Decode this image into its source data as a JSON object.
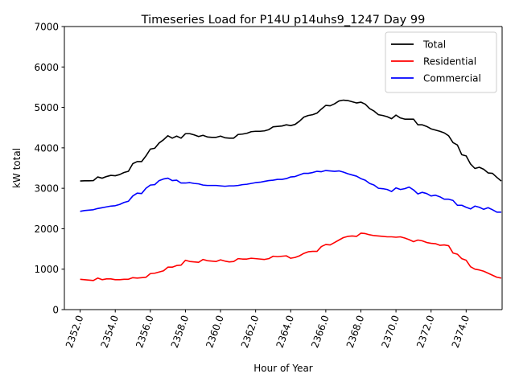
{
  "chart_data": {
    "type": "line",
    "title": "Timeseries Load for P14U p14uhs9_1247  Day 99",
    "xlabel": "Hour of Year",
    "ylabel": "kW total",
    "xlim": [
      2351.1,
      2376.05
    ],
    "ylim": [
      0,
      7000
    ],
    "xticks": [
      2352,
      2354,
      2356,
      2358,
      2360,
      2362,
      2364,
      2366,
      2368,
      2370,
      2372,
      2374
    ],
    "xtick_labels": [
      "2352.0",
      "2354.0",
      "2356.0",
      "2358.0",
      "2360.0",
      "2362.0",
      "2364.0",
      "2366.0",
      "2368.0",
      "2370.0",
      "2372.0",
      "2374.0"
    ],
    "yticks": [
      0,
      1000,
      2000,
      3000,
      4000,
      5000,
      6000,
      7000
    ],
    "ytick_labels": [
      "0",
      "1000",
      "2000",
      "3000",
      "4000",
      "5000",
      "6000",
      "7000"
    ],
    "legend_position": "top-right",
    "x_start": 2352.0,
    "x_step": 0.25,
    "series": [
      {
        "name": "Total",
        "color": "#000000",
        "values": [
          3180,
          3185,
          3185,
          3190,
          3280,
          3250,
          3290,
          3320,
          3310,
          3340,
          3390,
          3420,
          3610,
          3660,
          3660,
          3800,
          3970,
          3990,
          4120,
          4200,
          4300,
          4240,
          4290,
          4240,
          4350,
          4350,
          4320,
          4280,
          4310,
          4270,
          4260,
          4260,
          4290,
          4250,
          4240,
          4240,
          4330,
          4340,
          4360,
          4400,
          4410,
          4410,
          4420,
          4450,
          4520,
          4530,
          4540,
          4570,
          4550,
          4580,
          4660,
          4760,
          4800,
          4820,
          4860,
          4960,
          5050,
          5040,
          5090,
          5160,
          5180,
          5170,
          5140,
          5110,
          5130,
          5080,
          4970,
          4910,
          4820,
          4800,
          4770,
          4720,
          4810,
          4740,
          4710,
          4710,
          4710,
          4570,
          4570,
          4530,
          4470,
          4440,
          4410,
          4370,
          4300,
          4130,
          4070,
          3830,
          3800,
          3600,
          3490,
          3520,
          3470,
          3380,
          3370,
          3270,
          3180
        ]
      },
      {
        "name": "Residential",
        "color": "#ff0000",
        "values": [
          750,
          740,
          730,
          720,
          780,
          740,
          760,
          760,
          740,
          740,
          750,
          750,
          790,
          780,
          790,
          800,
          890,
          900,
          930,
          960,
          1050,
          1050,
          1090,
          1100,
          1220,
          1190,
          1180,
          1170,
          1240,
          1210,
          1200,
          1190,
          1230,
          1200,
          1180,
          1190,
          1260,
          1250,
          1250,
          1270,
          1260,
          1250,
          1240,
          1260,
          1320,
          1310,
          1320,
          1330,
          1270,
          1290,
          1330,
          1390,
          1430,
          1440,
          1440,
          1560,
          1610,
          1600,
          1660,
          1720,
          1780,
          1810,
          1820,
          1810,
          1890,
          1880,
          1850,
          1830,
          1820,
          1810,
          1800,
          1800,
          1790,
          1800,
          1770,
          1730,
          1680,
          1720,
          1700,
          1660,
          1640,
          1630,
          1590,
          1600,
          1580,
          1400,
          1370,
          1260,
          1220,
          1060,
          1000,
          980,
          950,
          900,
          850,
          800,
          780
        ]
      },
      {
        "name": "Commercial",
        "color": "#0000ff",
        "values": [
          2430,
          2450,
          2460,
          2470,
          2500,
          2520,
          2540,
          2560,
          2570,
          2600,
          2650,
          2680,
          2810,
          2880,
          2870,
          3000,
          3080,
          3090,
          3190,
          3230,
          3250,
          3190,
          3200,
          3130,
          3130,
          3140,
          3120,
          3110,
          3080,
          3070,
          3070,
          3070,
          3060,
          3050,
          3060,
          3060,
          3070,
          3090,
          3100,
          3120,
          3140,
          3150,
          3170,
          3190,
          3200,
          3220,
          3220,
          3240,
          3280,
          3290,
          3330,
          3370,
          3370,
          3390,
          3420,
          3410,
          3440,
          3430,
          3420,
          3430,
          3400,
          3360,
          3330,
          3300,
          3240,
          3200,
          3120,
          3080,
          3000,
          2990,
          2970,
          2920,
          3010,
          2970,
          2990,
          3030,
          2960,
          2860,
          2900,
          2870,
          2810,
          2830,
          2790,
          2730,
          2730,
          2700,
          2580,
          2580,
          2530,
          2490,
          2560,
          2530,
          2480,
          2520,
          2470,
          2410,
          2410
        ]
      }
    ]
  }
}
